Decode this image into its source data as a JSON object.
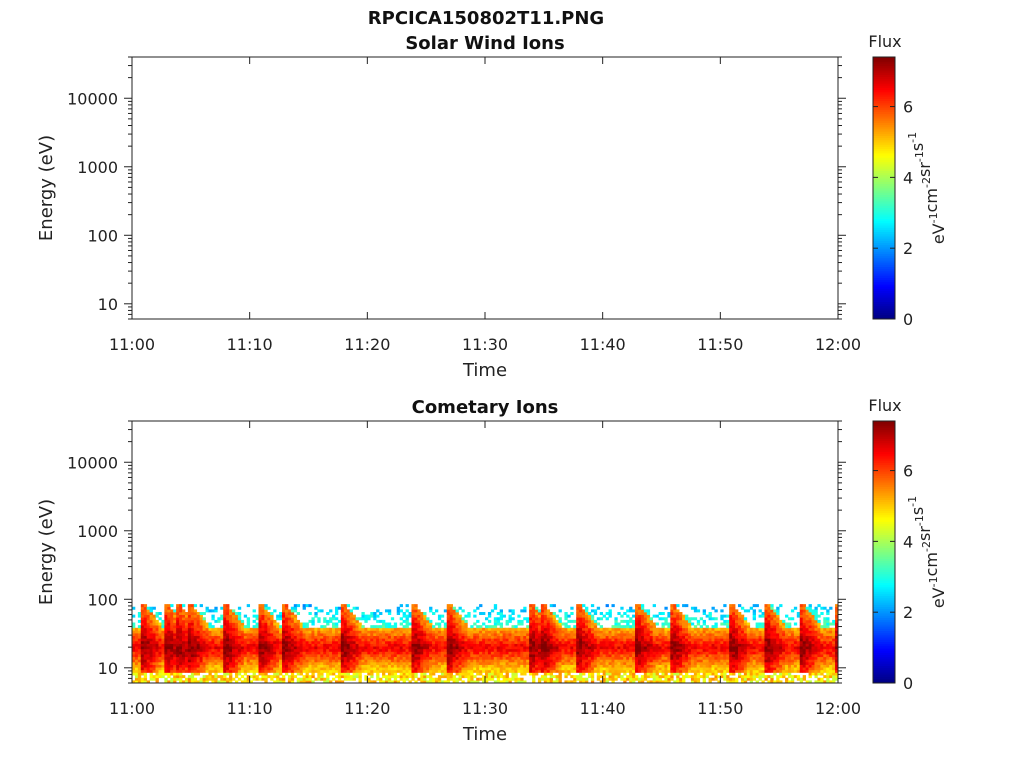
{
  "figure": {
    "title": "RPCICA150802T11.PNG"
  },
  "colorbar": {
    "label": "Flux",
    "units_parts": [
      "eV",
      "-1",
      "cm",
      "-2",
      "sr",
      "-1",
      "s",
      "-1"
    ],
    "ticks": [
      "0",
      "2",
      "4",
      "6"
    ],
    "range": [
      0,
      7.4
    ],
    "colormap": "jet"
  },
  "chart_data": [
    {
      "type": "heatmap",
      "title": "Solar Wind Ions",
      "xlabel": "Time",
      "ylabel": "Energy (eV)",
      "x_ticks": [
        "11:00",
        "11:10",
        "11:20",
        "11:30",
        "11:40",
        "11:50",
        "12:00"
      ],
      "y_ticks": [
        "10",
        "100",
        "1000",
        "10000"
      ],
      "xlim": [
        "11:00",
        "12:00"
      ],
      "ylim": [
        6,
        40000
      ],
      "yscale": "log",
      "z_label": "Flux",
      "data": []
    },
    {
      "type": "heatmap",
      "title": "Cometary Ions",
      "xlabel": "Time",
      "ylabel": "Energy (eV)",
      "x_ticks": [
        "11:00",
        "11:10",
        "11:20",
        "11:30",
        "11:40",
        "11:50",
        "12:00"
      ],
      "y_ticks": [
        "10",
        "100",
        "1000",
        "10000"
      ],
      "xlim": [
        "11:00",
        "12:00"
      ],
      "ylim": [
        6,
        40000
      ],
      "yscale": "log",
      "z_label": "Flux",
      "energy_band_eV": [
        6,
        85
      ],
      "peak_energy_range_eV": [
        10,
        40
      ],
      "peak_flux": 7,
      "spike_times": [
        "11:01",
        "11:03",
        "11:04",
        "11:05",
        "11:08",
        "11:11",
        "11:13",
        "11:18",
        "11:24",
        "11:27",
        "11:34",
        "11:35",
        "11:38",
        "11:43",
        "11:46",
        "11:51",
        "11:54",
        "11:57",
        "12:00"
      ]
    }
  ]
}
